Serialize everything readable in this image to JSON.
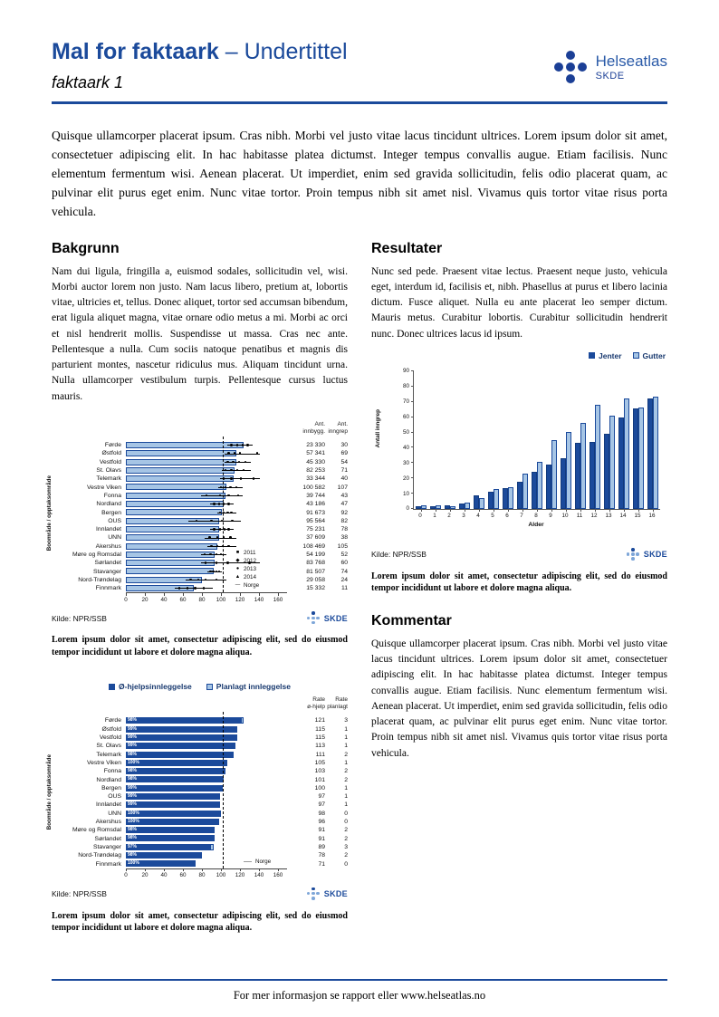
{
  "header": {
    "title_main": "Mal for faktaark",
    "title_sub": " – Undertittel",
    "doc_label": "faktaark 1",
    "logo": {
      "name": "Helseatlas",
      "sub": "SKDE"
    }
  },
  "intro": "Quisque ullamcorper placerat ipsum. Cras nibh. Morbi vel justo vitae lacus tincidunt ultrices. Lorem ipsum dolor sit amet, consectetuer adipiscing elit. In hac habitasse platea dictumst. Integer tempus convallis augue. Etiam facilisis. Nunc elementum fermentum wisi. Aenean placerat. Ut imperdiet, enim sed gravida sollicitudin, felis odio placerat quam, ac pulvinar elit purus eget enim. Nunc vitae tortor. Proin tempus nibh sit amet nisl. Vivamus quis tortor vitae risus porta vehicula.",
  "sections": {
    "bakgrunn": {
      "title": "Bakgrunn",
      "body": "Nam dui ligula, fringilla a, euismod sodales, sollicitudin vel, wisi. Morbi auctor lorem non justo. Nam lacus libero, pretium at, lobortis vitae, ultricies et, tellus. Donec aliquet, tortor sed accumsan bibendum, erat ligula aliquet magna, vitae ornare odio metus a mi. Morbi ac orci et nisl hendrerit mollis. Suspendisse ut massa. Cras nec ante. Pellentesque a nulla. Cum sociis natoque penatibus et magnis dis parturient montes, nascetur ridiculus mus. Aliquam tincidunt urna. Nulla ullamcorper vestibulum turpis. Pellentesque cursus luctus mauris."
    },
    "resultater": {
      "title": "Resultater",
      "body": "Nunc sed pede. Praesent vitae lectus. Praesent neque justo, vehicula eget, interdum id, facilisis et, nibh. Phasellus at purus et libero lacinia dictum. Fusce aliquet. Nulla eu ante placerat leo semper dictum. Mauris metus. Curabitur lobortis. Curabitur sollicitudin hendrerit nunc. Donec ultrices lacus id ipsum."
    },
    "kommentar": {
      "title": "Kommentar",
      "body": "Quisque ullamcorper placerat ipsum. Cras nibh. Morbi vel justo vitae lacus tincidunt ultrices. Lorem ipsum dolor sit amet, consectetuer adipiscing elit. In hac habitasse platea dictumst. Integer tempus convallis augue. Etiam facilisis. Nunc elementum fermentum wisi. Aenean placerat. Ut imperdiet, enim sed gravida sollicitudin, felis odio placerat quam, ac pulvinar elit purus eget enim. Nunc vitae tortor. Proin tempus nibh sit amet nisl. Vivamus quis tortor vitae risus porta vehicula."
    }
  },
  "captions": {
    "chart1": "Lorem ipsum dolor sit amet, consectetur adipiscing elit, sed do eiusmod tempor incididunt ut labore et dolore magna aliqua.",
    "chart2": "Lorem ipsum dolor sit amet, consectetur adipiscing elit, sed do eiusmod tempor incididunt ut labore et dolore magna aliqua.",
    "chart3": "Lorem ipsum dolor sit amet, consectetur adipiscing elit, sed do eiusmod tempor incididunt ut labore et dolore magna aliqua."
  },
  "footer": {
    "text": "For mer informasjon se rapport eller www.helseatlas.no"
  },
  "colors": {
    "brand_blue": "#1b4a9b",
    "bar_dark": "#1b4a9b",
    "bar_light": "#a6c5e5",
    "marker_black": "#000000"
  },
  "chart_data": [
    {
      "type": "bar",
      "orientation": "horizontal",
      "title": "",
      "ylabel": "Boområde / opptaksområde",
      "categories": [
        "Førde",
        "Østfold",
        "Vestfold",
        "St. Olavs",
        "Telemark",
        "Vestre Viken",
        "Fonna",
        "Nordland",
        "Bergen",
        "OUS",
        "Innlandet",
        "UNN",
        "Akershus",
        "Møre og Romsdal",
        "Sørlandet",
        "Stavanger",
        "Nord-Trøndelag",
        "Finnmark"
      ],
      "values": [
        124,
        116,
        116,
        114,
        113,
        106,
        105,
        103,
        101,
        98,
        98,
        98,
        96,
        93,
        93,
        92,
        80,
        71
      ],
      "year_markers": [
        {
          "range": [
            107,
            133
          ],
          "points": [
            111,
            117,
            123,
            128
          ]
        },
        {
          "range": [
            104,
            141
          ],
          "points": [
            108,
            114,
            120,
            138
          ]
        },
        {
          "range": [
            104,
            131
          ],
          "points": [
            107,
            113,
            119,
            126
          ]
        },
        {
          "range": [
            101,
            131
          ],
          "points": [
            105,
            111,
            117,
            124
          ]
        },
        {
          "range": [
            99,
            141
          ],
          "points": [
            103,
            111,
            121,
            134
          ]
        },
        {
          "range": [
            97,
            123
          ],
          "points": [
            100,
            105,
            110,
            116
          ]
        },
        {
          "range": [
            79,
            123
          ],
          "points": [
            85,
            99,
            108,
            118
          ]
        },
        {
          "range": [
            89,
            113
          ],
          "points": [
            93,
            98,
            103,
            108
          ]
        },
        {
          "range": [
            96,
            116
          ],
          "points": [
            99,
            103,
            107,
            111
          ]
        },
        {
          "range": [
            66,
            121
          ],
          "points": [
            74,
            90,
            101,
            112
          ]
        },
        {
          "range": [
            89,
            113
          ],
          "points": [
            93,
            99,
            104,
            108
          ]
        },
        {
          "range": [
            83,
            116
          ],
          "points": [
            88,
            96,
            103,
            110
          ]
        },
        {
          "range": [
            86,
            116
          ],
          "points": [
            90,
            96,
            102,
            108
          ]
        },
        {
          "range": [
            79,
            106
          ],
          "points": [
            83,
            89,
            95,
            100
          ]
        },
        {
          "range": [
            79,
            141
          ],
          "points": [
            84,
            95,
            107,
            130
          ]
        },
        {
          "range": [
            86,
            101
          ],
          "points": [
            89,
            92,
            95,
            98
          ]
        },
        {
          "range": [
            63,
            106
          ],
          "points": [
            68,
            76,
            84,
            95
          ]
        },
        {
          "range": [
            51,
            91
          ],
          "points": [
            56,
            65,
            73,
            82
          ]
        }
      ],
      "columns": {
        "headers": [
          "Ant.\ninnbygg.",
          "Ant.\ninngrep"
        ],
        "innbygg": [
          "23 330",
          "57 341",
          "45 330",
          "82 253",
          "33 344",
          "100 582",
          "39 744",
          "43 186",
          "91 673",
          "95 564",
          "75 231",
          "37 609",
          "108 469",
          "54 199",
          "83 768",
          "81 507",
          "29 058",
          "15 332"
        ],
        "inngrep": [
          "30",
          "69",
          "54",
          "71",
          "40",
          "107",
          "43",
          "47",
          "92",
          "82",
          "78",
          "38",
          "105",
          "52",
          "60",
          "74",
          "24",
          "11"
        ]
      },
      "legend": [
        "2011",
        "2012",
        "2013",
        "2014",
        "Norge"
      ],
      "legend_markers": [
        "■",
        "◆",
        "●",
        "▲",
        "—"
      ],
      "norge_line": 102,
      "xticks": [
        0,
        20,
        40,
        60,
        80,
        100,
        120,
        140,
        160
      ],
      "xlim": [
        0,
        168
      ],
      "source": "Kilde: NPR/SSB",
      "logo_text": "SKDE"
    },
    {
      "type": "bar",
      "orientation": "horizontal",
      "stacked": true,
      "title": "",
      "ylabel": "Boområde / opptaksområde",
      "categories": [
        "Førde",
        "Østfold",
        "Vestfold",
        "St. Olavs",
        "Telemark",
        "Vestre Viken",
        "Fonna",
        "Nordland",
        "Bergen",
        "OUS",
        "Innlandet",
        "UNN",
        "Akershus",
        "Møre og Romsdal",
        "Sørlandet",
        "Stavanger",
        "Nord-Trøndelag",
        "Finnmark"
      ],
      "series": [
        {
          "name": "Ø-hjelpsinnleggelse",
          "values": [
            121,
            115,
            115,
            113,
            111,
            105,
            103,
            101,
            100,
            97,
            97,
            98,
            96,
            91,
            91,
            89,
            78,
            71
          ]
        },
        {
          "name": "Planlagt innleggelse",
          "values": [
            3,
            1,
            1,
            1,
            2,
            1,
            2,
            2,
            1,
            1,
            1,
            0,
            0,
            2,
            2,
            3,
            2,
            0
          ]
        }
      ],
      "bar_labels": [
        "98%",
        "99%",
        "99%",
        "99%",
        "98%",
        "100%",
        "98%",
        "98%",
        "99%",
        "99%",
        "99%",
        "100%",
        "100%",
        "98%",
        "98%",
        "97%",
        "98%",
        "100%"
      ],
      "columns": {
        "headers": [
          "Rate\nø-hjelp",
          "Rate\nplanlagt"
        ],
        "rate_ehjelp": [
          "121",
          "115",
          "115",
          "113",
          "111",
          "105",
          "103",
          "101",
          "100",
          "97",
          "97",
          "98",
          "96",
          "91",
          "91",
          "89",
          "78",
          "71"
        ],
        "rate_planlagt": [
          "3",
          "1",
          "1",
          "1",
          "2",
          "1",
          "2",
          "2",
          "1",
          "1",
          "1",
          "0",
          "0",
          "2",
          "2",
          "3",
          "2",
          "0"
        ]
      },
      "norge_line": 102,
      "norge_label": "Norge",
      "xticks": [
        0,
        20,
        40,
        60,
        80,
        100,
        120,
        140,
        160
      ],
      "xlim": [
        0,
        168
      ],
      "source": "Kilde: NPR/SSB",
      "logo_text": "SKDE"
    },
    {
      "type": "bar",
      "orientation": "vertical",
      "grouped": true,
      "title": "",
      "xlabel": "Alder",
      "ylabel": "Antall inngrep",
      "categories": [
        "0",
        "1",
        "2",
        "3",
        "4",
        "5",
        "6",
        "7",
        "8",
        "9",
        "10",
        "11",
        "12",
        "13",
        "14",
        "15",
        "16"
      ],
      "series": [
        {
          "name": "Jenter",
          "values": [
            2,
            1.5,
            2.5,
            3.5,
            9,
            11,
            13.5,
            18,
            24,
            29,
            33,
            43,
            44,
            49,
            60,
            66,
            72
          ]
        },
        {
          "name": "Gutter",
          "values": [
            2.5,
            2.5,
            2,
            4,
            7,
            13,
            14.5,
            23,
            30.5,
            45,
            50.5,
            56,
            68,
            61,
            72.5,
            66.5,
            73.5
          ]
        }
      ],
      "yticks": [
        0,
        10,
        20,
        30,
        40,
        50,
        60,
        70,
        80,
        90
      ],
      "ylim": [
        0,
        90
      ],
      "source": "Kilde: NPR/SSB",
      "logo_text": "SKDE"
    }
  ]
}
